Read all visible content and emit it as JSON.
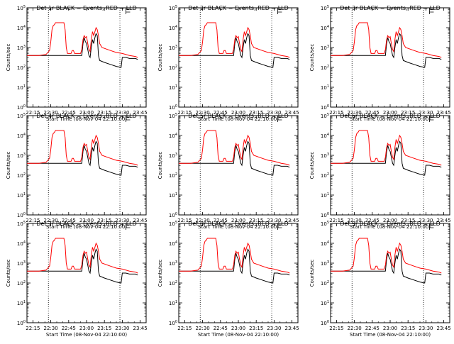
{
  "chart_data": {
    "type": "line",
    "layout": "3x3 grid",
    "panels": [
      {
        "title": "Det 1r BLACK = Events, RED = LLD"
      },
      {
        "title": "Det 2r BLACK = Events, RED = LLD"
      },
      {
        "title": "Det 3r BLACK = Events, RED = LLD"
      },
      {
        "title": "Det 4r BLACK = Events, RED = LLD"
      },
      {
        "title": "Det 5r BLACK = Events, RED = LLD"
      },
      {
        "title": "Det 6r BLACK = Events, RED = LLD"
      },
      {
        "title": "Det 7r BLACK = Events, RED = LLD"
      },
      {
        "title": "Det 8r BLACK = Events, RED = LLD"
      },
      {
        "title": "Det 9r BLACK = Events, RED = LLD"
      }
    ],
    "xlabel": "Start Time (08-Nov-04 22:10:00)",
    "ylabel": "Counts/sec",
    "x_tick_labels": [
      "22:15",
      "22:30",
      "22:45",
      "23:00",
      "23:15",
      "23:30",
      "23:45"
    ],
    "x_ticks_min": [
      5,
      20,
      35,
      50,
      65,
      80,
      95
    ],
    "xlim_min": [
      0,
      100
    ],
    "y_scale": "log",
    "y_tick_exponents": [
      0,
      1,
      2,
      3,
      4,
      5
    ],
    "ylim": [
      1,
      100000
    ],
    "vertical_markers_min": [
      18,
      78
    ],
    "flag_marker_min": 83,
    "series_colors": {
      "events": "#000000",
      "lld": "#ff0000"
    },
    "lld_log10": [
      [
        0,
        2.6
      ],
      [
        10,
        2.6
      ],
      [
        16,
        2.65
      ],
      [
        19,
        2.85
      ],
      [
        20,
        3.3
      ],
      [
        21,
        3.9
      ],
      [
        22,
        4.1
      ],
      [
        23,
        4.15
      ],
      [
        24,
        4.25
      ],
      [
        27,
        4.25
      ],
      [
        31,
        4.25
      ],
      [
        32,
        3.9
      ],
      [
        33,
        3.0
      ],
      [
        34,
        2.7
      ],
      [
        37,
        2.7
      ],
      [
        38,
        2.85
      ],
      [
        39,
        2.85
      ],
      [
        40,
        2.7
      ],
      [
        45,
        2.7
      ],
      [
        46,
        2.9
      ],
      [
        47,
        3.4
      ],
      [
        48,
        3.6
      ],
      [
        49,
        3.5
      ],
      [
        50,
        3.55
      ],
      [
        51,
        3.2
      ],
      [
        52,
        2.9
      ],
      [
        53,
        2.8
      ],
      [
        54,
        3.4
      ],
      [
        55,
        3.8
      ],
      [
        56,
        3.6
      ],
      [
        57,
        3.8
      ],
      [
        58,
        4.0
      ],
      [
        59,
        3.9
      ],
      [
        60,
        3.6
      ],
      [
        61,
        3.2
      ],
      [
        63,
        3.0
      ],
      [
        70,
        2.85
      ],
      [
        75,
        2.75
      ],
      [
        80,
        2.7
      ],
      [
        86,
        2.6
      ],
      [
        91,
        2.55
      ],
      [
        93,
        2.5
      ]
    ],
    "events_log10": [
      [
        0,
        2.6
      ],
      [
        46,
        2.6
      ],
      [
        47,
        3.2
      ],
      [
        48,
        3.5
      ],
      [
        49,
        3.3
      ],
      [
        50,
        3.2
      ],
      [
        51,
        2.9
      ],
      [
        52,
        2.6
      ],
      [
        53,
        2.5
      ],
      [
        54,
        3.0
      ],
      [
        55,
        3.4
      ],
      [
        56,
        3.2
      ],
      [
        57,
        3.5
      ],
      [
        58,
        3.7
      ],
      [
        59,
        3.6
      ],
      [
        60,
        2.6
      ],
      [
        61,
        2.35
      ],
      [
        65,
        2.25
      ],
      [
        70,
        2.15
      ],
      [
        75,
        2.05
      ],
      [
        79,
        2.0
      ],
      [
        80,
        2.5
      ],
      [
        83,
        2.5
      ],
      [
        86,
        2.45
      ],
      [
        91,
        2.45
      ],
      [
        93,
        2.4
      ]
    ]
  }
}
